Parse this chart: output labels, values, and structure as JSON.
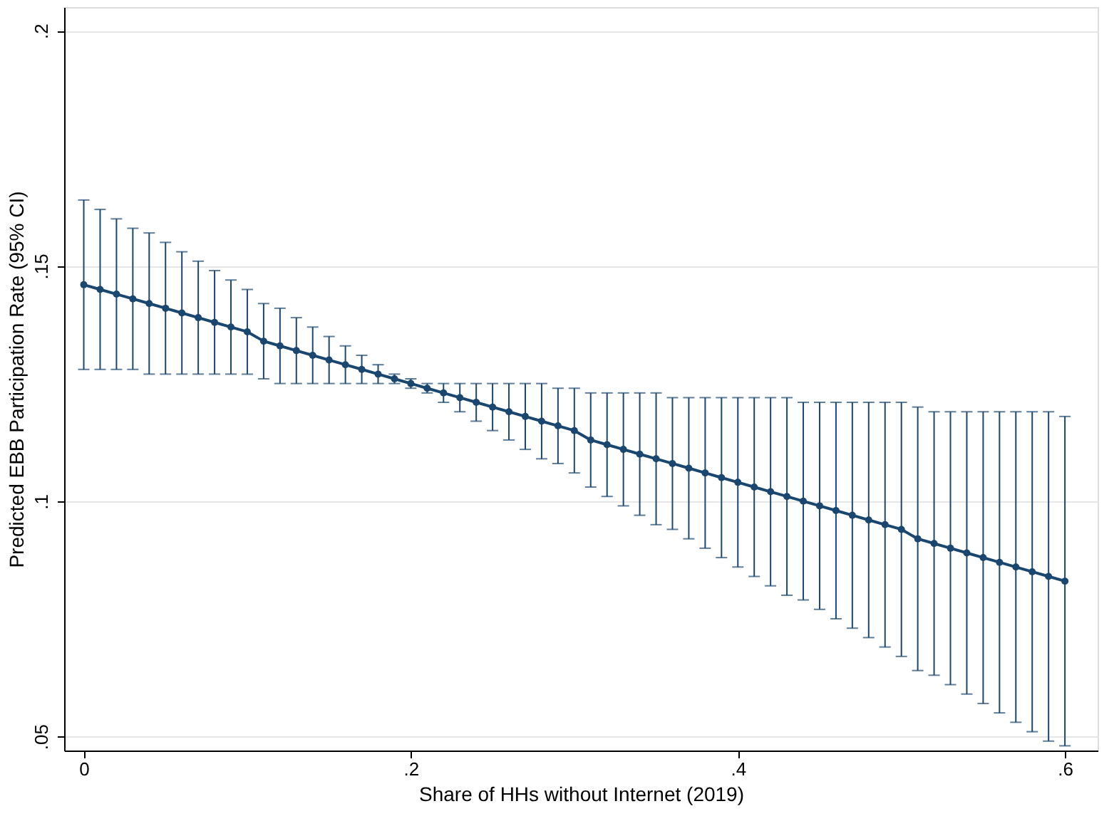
{
  "chart_data": {
    "type": "line",
    "xlabel": "Share of HHs without Internet (2019)",
    "ylabel": "Predicted EBB Participation Rate (95% CI)",
    "x": [
      0,
      0.01,
      0.02,
      0.03,
      0.04,
      0.05,
      0.06,
      0.07,
      0.08,
      0.09,
      0.1,
      0.11,
      0.12,
      0.13,
      0.14,
      0.15,
      0.16,
      0.17,
      0.18,
      0.19,
      0.2,
      0.21,
      0.22,
      0.23,
      0.24,
      0.25,
      0.26,
      0.27,
      0.28,
      0.29,
      0.3,
      0.31,
      0.32,
      0.33,
      0.34,
      0.35,
      0.36,
      0.37,
      0.38,
      0.39,
      0.4,
      0.41,
      0.42,
      0.43,
      0.44,
      0.45,
      0.46,
      0.47,
      0.48,
      0.49,
      0.5,
      0.51,
      0.52,
      0.53,
      0.54,
      0.55,
      0.56,
      0.57,
      0.58,
      0.59,
      0.6
    ],
    "series": [
      {
        "color": "#1a476f",
        "values": [
          0.146,
          0.145,
          0.144,
          0.143,
          0.142,
          0.141,
          0.14,
          0.139,
          0.138,
          0.137,
          0.136,
          0.134,
          0.133,
          0.132,
          0.131,
          0.13,
          0.129,
          0.128,
          0.127,
          0.126,
          0.125,
          0.124,
          0.123,
          0.122,
          0.121,
          0.12,
          0.119,
          0.118,
          0.117,
          0.116,
          0.115,
          0.113,
          0.112,
          0.111,
          0.11,
          0.109,
          0.108,
          0.107,
          0.106,
          0.105,
          0.104,
          0.103,
          0.102,
          0.101,
          0.1,
          0.099,
          0.098,
          0.097,
          0.096,
          0.095,
          0.094,
          0.092,
          0.091,
          0.09,
          0.089,
          0.088,
          0.087,
          0.086,
          0.085,
          0.084,
          0.083
        ],
        "errors": [
          0.018,
          0.017,
          0.016,
          0.015,
          0.015,
          0.014,
          0.013,
          0.012,
          0.011,
          0.01,
          0.009,
          0.008,
          0.008,
          0.007,
          0.006,
          0.005,
          0.004,
          0.003,
          0.002,
          0.001,
          0.001,
          0.001,
          0.002,
          0.003,
          0.004,
          0.005,
          0.006,
          0.007,
          0.008,
          0.008,
          0.009,
          0.01,
          0.011,
          0.012,
          0.013,
          0.014,
          0.014,
          0.015,
          0.016,
          0.017,
          0.018,
          0.019,
          0.02,
          0.021,
          0.021,
          0.022,
          0.023,
          0.024,
          0.025,
          0.026,
          0.027,
          0.028,
          0.028,
          0.029,
          0.03,
          0.031,
          0.032,
          0.033,
          0.034,
          0.035,
          0.035
        ]
      }
    ],
    "xlim": [
      -0.012,
      0.62
    ],
    "xticks": [
      0,
      {
        "value": 0.2,
        "label": ".2"
      },
      {
        "value": 0.4,
        "label": ".4"
      },
      {
        "value": 0.6,
        "label": ".6"
      }
    ],
    "ylim": [
      0.047,
      0.205
    ],
    "yticks": [
      {
        "value": 0.05,
        "label": ".05"
      },
      {
        "value": 0.1,
        "label": ".1"
      },
      {
        "value": 0.15,
        "label": ".15"
      },
      {
        "value": 0.2,
        "label": ".2"
      }
    ],
    "grid": "y",
    "marker": "circle",
    "line_style": "solid"
  }
}
